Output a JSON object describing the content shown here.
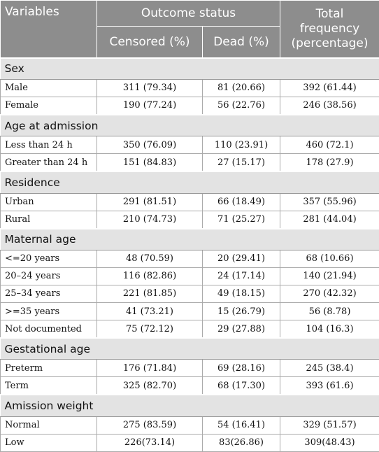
{
  "header": {
    "variables": "Variables",
    "outcome_status": "Outcome status",
    "censored": "Censored (%)",
    "dead": "Dead (%)",
    "total": "Total frequency (percentage)"
  },
  "sections": [
    {
      "title": "Sex",
      "rows": [
        [
          "Male",
          "311 (79.34)",
          "81 (20.66)",
          "392 (61.44)"
        ],
        [
          "Female",
          "190 (77.24)",
          "56 (22.76)",
          "246 (38.56)"
        ]
      ]
    },
    {
      "title": "Age at admission",
      "rows": [
        [
          "Less than 24 h",
          "350 (76.09)",
          "110 (23.91)",
          "460 (72.1)"
        ],
        [
          "Greater than 24 h",
          "151 (84.83)",
          "27 (15.17)",
          "178 (27.9)"
        ]
      ]
    },
    {
      "title": "Residence",
      "rows": [
        [
          "Urban",
          "291 (81.51)",
          "66 (18.49)",
          "357 (55.96)"
        ],
        [
          "Rural",
          "210 (74.73)",
          "71 (25.27)",
          "281 (44.04)"
        ]
      ]
    },
    {
      "title": "Maternal age",
      "rows": [
        [
          "<=20 years",
          "48 (70.59)",
          "20 (29.41)",
          "68 (10.66)"
        ],
        [
          "20–24 years",
          "116 (82.86)",
          "24 (17.14)",
          "140 (21.94)"
        ],
        [
          "25–34 years",
          "221 (81.85)",
          "49 (18.15)",
          "270 (42.32)"
        ],
        [
          ">=35 years",
          "41 (73.21)",
          "15 (26.79)",
          "56 (8.78)"
        ],
        [
          "Not documented",
          "75 (72.12)",
          "29 (27.88)",
          "104 (16.3)"
        ]
      ]
    },
    {
      "title": "Gestational age",
      "rows": [
        [
          "Preterm",
          "176 (71.84)",
          "69 (28.16)",
          "245 (38.4)"
        ],
        [
          "Term",
          "325 (82.70)",
          "68 (17.30)",
          "393 (61.6)"
        ]
      ]
    },
    {
      "title": "Amission weight",
      "rows": [
        [
          "Normal",
          "275 (83.59)",
          "54 (16.41)",
          "329 (51.57)"
        ],
        [
          "Low",
          "226(73.14)",
          "83(26.86)",
          "309(48.43)"
        ]
      ]
    }
  ]
}
